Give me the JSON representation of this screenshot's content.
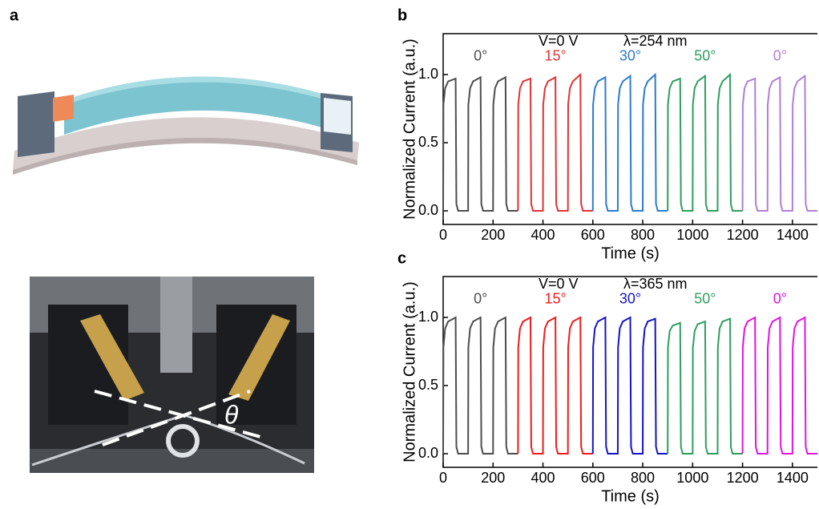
{
  "panel_labels": {
    "a": "a",
    "b": "b",
    "c": "c"
  },
  "photo": {
    "angle_label": "θ"
  },
  "chart_data": [
    {
      "type": "line",
      "xlabel": "Time (s)",
      "ylabel": "Normalized Current (a.u.)",
      "annotations": [
        "V=0 V",
        "λ=254 nm"
      ],
      "xlim": [
        0,
        1500
      ],
      "ylim": [
        -0.1,
        1.3
      ],
      "xticks": [
        0,
        200,
        400,
        600,
        800,
        1000,
        1200,
        1400
      ],
      "yticks": [
        {
          "value": 0,
          "label": "0.0"
        },
        0.5,
        {
          "value": 1,
          "label": "1.0"
        }
      ],
      "series": [
        {
          "name": "0°",
          "color": "#4d4d4d",
          "x": [
            0,
            1,
            8,
            20,
            50,
            53,
            60,
            100,
            101,
            108,
            120,
            150,
            153,
            160,
            200,
            201,
            208,
            220,
            250,
            253,
            260,
            300
          ],
          "values": [
            0,
            0.78,
            0.9,
            0.95,
            0.97,
            0.05,
            0,
            0,
            0.78,
            0.9,
            0.95,
            0.98,
            0.05,
            0,
            0,
            0.78,
            0.9,
            0.95,
            0.98,
            0.05,
            0,
            0
          ]
        },
        {
          "name": "15°",
          "color": "#e03434",
          "x": [
            300,
            301,
            308,
            320,
            350,
            353,
            360,
            400,
            401,
            408,
            420,
            450,
            453,
            460,
            500,
            501,
            508,
            520,
            550,
            553,
            560,
            600
          ],
          "values": [
            0,
            0.78,
            0.9,
            0.95,
            0.97,
            0.05,
            0,
            0,
            0.78,
            0.9,
            0.95,
            0.98,
            0.05,
            0,
            0,
            0.78,
            0.9,
            0.95,
            1.0,
            0.05,
            0,
            0
          ]
        },
        {
          "name": "30°",
          "color": "#2b7bd0",
          "x": [
            600,
            601,
            608,
            620,
            650,
            653,
            660,
            700,
            701,
            708,
            720,
            750,
            753,
            760,
            800,
            801,
            808,
            820,
            850,
            853,
            860,
            900
          ],
          "values": [
            0,
            0.78,
            0.9,
            0.95,
            0.98,
            0.05,
            0,
            0,
            0.78,
            0.9,
            0.95,
            0.99,
            0.05,
            0,
            0,
            0.78,
            0.9,
            0.95,
            1.0,
            0.05,
            0,
            0
          ]
        },
        {
          "name": "50°",
          "color": "#2e9e5e",
          "x": [
            900,
            901,
            908,
            920,
            950,
            953,
            960,
            1000,
            1001,
            1008,
            1020,
            1050,
            1053,
            1060,
            1100,
            1101,
            1108,
            1120,
            1150,
            1153,
            1160,
            1200
          ],
          "values": [
            0,
            0.78,
            0.9,
            0.95,
            0.97,
            0.05,
            0,
            0,
            0.78,
            0.9,
            0.95,
            0.99,
            0.05,
            0,
            0,
            0.78,
            0.9,
            0.95,
            1.0,
            0.05,
            0,
            0
          ]
        },
        {
          "name": "0°",
          "color": "#b07ed8",
          "x": [
            1200,
            1201,
            1208,
            1220,
            1250,
            1253,
            1260,
            1300,
            1301,
            1308,
            1320,
            1350,
            1353,
            1360,
            1400,
            1401,
            1408,
            1420,
            1450,
            1453,
            1460,
            1500
          ],
          "values": [
            0,
            0.78,
            0.9,
            0.95,
            0.97,
            0.05,
            0,
            0,
            0.78,
            0.9,
            0.95,
            0.98,
            0.05,
            0,
            0,
            0.78,
            0.9,
            0.95,
            0.99,
            0.05,
            0,
            0
          ]
        }
      ]
    },
    {
      "type": "line",
      "xlabel": "Time (s)",
      "ylabel": "Normalized Current (a.u.)",
      "annotations": [
        "V=0 V",
        "λ=365 nm"
      ],
      "xlim": [
        0,
        1500
      ],
      "ylim": [
        -0.1,
        1.3
      ],
      "xticks": [
        0,
        200,
        400,
        600,
        800,
        1000,
        1200,
        1400
      ],
      "yticks": [
        {
          "value": 0,
          "label": "0.0"
        },
        0.5,
        {
          "value": 1,
          "label": "1.0"
        }
      ],
      "series": [
        {
          "name": "0°",
          "color": "#4d4d4d",
          "x": [
            0,
            1,
            8,
            20,
            50,
            53,
            60,
            100,
            101,
            108,
            120,
            150,
            153,
            160,
            200,
            201,
            208,
            220,
            250,
            253,
            260,
            300
          ],
          "values": [
            0,
            0.78,
            0.92,
            0.97,
            1.0,
            0.05,
            0,
            0,
            0.78,
            0.92,
            0.97,
            1.0,
            0.05,
            0,
            0,
            0.78,
            0.92,
            0.97,
            1.0,
            0.05,
            0,
            0
          ]
        },
        {
          "name": "15°",
          "color": "#ee1c1c",
          "x": [
            300,
            301,
            308,
            320,
            350,
            353,
            360,
            400,
            401,
            408,
            420,
            450,
            453,
            460,
            500,
            501,
            508,
            520,
            550,
            553,
            560,
            600
          ],
          "values": [
            0,
            0.78,
            0.92,
            0.97,
            1.0,
            0.05,
            0,
            0,
            0.78,
            0.92,
            0.97,
            1.0,
            0.05,
            0,
            0,
            0.78,
            0.92,
            0.97,
            1.0,
            0.05,
            0,
            0
          ]
        },
        {
          "name": "30°",
          "color": "#1414c8",
          "x": [
            600,
            601,
            608,
            620,
            650,
            653,
            660,
            700,
            701,
            708,
            720,
            750,
            753,
            760,
            800,
            801,
            808,
            820,
            850,
            853,
            860,
            900
          ],
          "values": [
            0,
            0.78,
            0.92,
            0.97,
            1.0,
            0.05,
            0,
            0,
            0.78,
            0.92,
            0.97,
            1.0,
            0.05,
            0,
            0,
            0.78,
            0.92,
            0.97,
            0.99,
            0.05,
            0,
            0
          ]
        },
        {
          "name": "50°",
          "color": "#2e9e5e",
          "x": [
            900,
            901,
            908,
            920,
            950,
            953,
            960,
            1000,
            1001,
            1008,
            1020,
            1050,
            1053,
            1060,
            1100,
            1101,
            1108,
            1120,
            1150,
            1153,
            1160,
            1200
          ],
          "values": [
            0,
            0.78,
            0.9,
            0.94,
            0.96,
            0.05,
            0,
            0,
            0.78,
            0.9,
            0.95,
            0.97,
            0.05,
            0,
            0,
            0.78,
            0.92,
            0.97,
            0.99,
            0.05,
            0,
            0
          ]
        },
        {
          "name": "0°",
          "color": "#e014e0",
          "x": [
            1200,
            1201,
            1208,
            1220,
            1250,
            1253,
            1260,
            1300,
            1301,
            1308,
            1320,
            1350,
            1353,
            1360,
            1400,
            1401,
            1408,
            1420,
            1450,
            1453,
            1460,
            1500
          ],
          "values": [
            0,
            0.78,
            0.92,
            0.97,
            1.0,
            0.05,
            0,
            0,
            0.78,
            0.92,
            0.97,
            1.0,
            0.05,
            0,
            0,
            0.78,
            0.92,
            0.97,
            1.0,
            0.05,
            0,
            0
          ]
        }
      ]
    }
  ]
}
